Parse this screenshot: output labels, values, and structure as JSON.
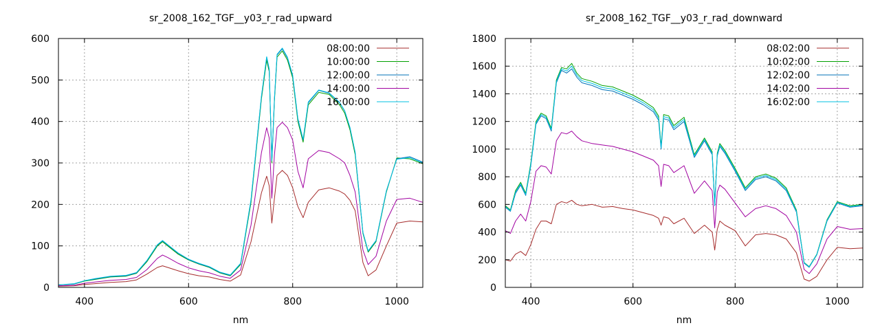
{
  "chart_data": [
    {
      "type": "line",
      "title": "sr_2008_162_TGF__y03_r_rad_upward",
      "xlabel": "nm",
      "ylabel": "",
      "xlim": [
        350,
        1050
      ],
      "ylim": [
        0,
        600
      ],
      "xticks": [
        400,
        600,
        800,
        1000
      ],
      "yticks": [
        0,
        100,
        200,
        300,
        400,
        500,
        600
      ],
      "grid": true,
      "legend": "top-right",
      "x": [
        350,
        380,
        400,
        420,
        450,
        480,
        500,
        520,
        540,
        550,
        560,
        580,
        600,
        620,
        640,
        660,
        680,
        700,
        720,
        740,
        750,
        755,
        760,
        765,
        770,
        780,
        790,
        800,
        810,
        820,
        830,
        850,
        870,
        890,
        900,
        910,
        920,
        935,
        945,
        960,
        980,
        1000,
        1025,
        1050
      ],
      "series": [
        {
          "name": "08:00:00",
          "color": "#a52a2a",
          "values": [
            3,
            4,
            7,
            9,
            12,
            14,
            18,
            32,
            48,
            52,
            48,
            40,
            33,
            28,
            25,
            19,
            15,
            30,
            110,
            228,
            268,
            245,
            155,
            215,
            270,
            282,
            270,
            240,
            195,
            168,
            205,
            235,
            240,
            232,
            225,
            210,
            185,
            60,
            28,
            42,
            100,
            155,
            160,
            158
          ]
        },
        {
          "name": "10:00:00",
          "color": "#00a000",
          "values": [
            6,
            8,
            15,
            19,
            25,
            27,
            34,
            62,
            100,
            110,
            100,
            80,
            66,
            56,
            48,
            35,
            28,
            55,
            205,
            455,
            548,
            520,
            300,
            450,
            555,
            570,
            548,
            505,
            400,
            350,
            440,
            470,
            465,
            440,
            420,
            380,
            320,
            130,
            85,
            110,
            230,
            312,
            310,
            298
          ]
        },
        {
          "name": "12:00:00",
          "color": "#0071b7",
          "values": [
            6,
            8,
            16,
            20,
            26,
            28,
            35,
            64,
            102,
            112,
            102,
            82,
            67,
            57,
            49,
            36,
            29,
            57,
            210,
            460,
            555,
            525,
            305,
            455,
            560,
            575,
            553,
            510,
            405,
            355,
            445,
            475,
            468,
            445,
            425,
            385,
            325,
            132,
            87,
            112,
            232,
            310,
            315,
            302
          ]
        },
        {
          "name": "14:00:00",
          "color": "#a000a0",
          "values": [
            4,
            5,
            10,
            13,
            17,
            19,
            24,
            43,
            70,
            78,
            72,
            58,
            47,
            40,
            35,
            27,
            22,
            42,
            150,
            325,
            385,
            360,
            215,
            320,
            385,
            398,
            385,
            355,
            280,
            240,
            310,
            330,
            325,
            310,
            300,
            270,
            230,
            90,
            55,
            75,
            160,
            212,
            215,
            205
          ]
        },
        {
          "name": "16:00:00",
          "color": "#00c0e0",
          "values": [
            6,
            9,
            16,
            21,
            27,
            29,
            36,
            65,
            103,
            113,
            103,
            83,
            68,
            58,
            50,
            37,
            30,
            58,
            212,
            462,
            556,
            527,
            306,
            457,
            562,
            577,
            555,
            512,
            407,
            357,
            447,
            476,
            469,
            446,
            426,
            386,
            326,
            133,
            88,
            113,
            233,
            309,
            313,
            300
          ]
        }
      ]
    },
    {
      "type": "line",
      "title": "sr_2008_162_TGF__y03_r_rad_downward",
      "xlabel": "nm",
      "ylabel": "",
      "xlim": [
        350,
        1050
      ],
      "ylim": [
        0,
        1800
      ],
      "xticks": [
        400,
        600,
        800,
        1000
      ],
      "yticks": [
        0,
        200,
        400,
        600,
        800,
        1000,
        1200,
        1400,
        1600,
        1800
      ],
      "grid": true,
      "legend": "top-right",
      "x": [
        350,
        360,
        370,
        380,
        390,
        400,
        410,
        420,
        430,
        440,
        450,
        460,
        470,
        480,
        490,
        500,
        520,
        540,
        560,
        580,
        600,
        620,
        640,
        650,
        655,
        660,
        670,
        680,
        700,
        720,
        740,
        755,
        760,
        765,
        770,
        780,
        800,
        820,
        840,
        860,
        880,
        900,
        920,
        935,
        945,
        960,
        980,
        1000,
        1025,
        1050
      ],
      "series": [
        {
          "name": "08:02:00",
          "color": "#a52a2a",
          "values": [
            200,
            190,
            240,
            260,
            230,
            310,
            420,
            480,
            480,
            460,
            600,
            620,
            610,
            630,
            600,
            590,
            600,
            580,
            585,
            570,
            560,
            540,
            520,
            500,
            450,
            510,
            500,
            460,
            500,
            390,
            450,
            400,
            270,
            420,
            480,
            450,
            410,
            300,
            380,
            390,
            380,
            350,
            250,
            60,
            45,
            80,
            200,
            290,
            280,
            285
          ]
        },
        {
          "name": "10:02:00",
          "color": "#00a000",
          "values": [
            590,
            560,
            700,
            760,
            680,
            900,
            1200,
            1260,
            1240,
            1150,
            1500,
            1590,
            1580,
            1620,
            1550,
            1510,
            1490,
            1460,
            1450,
            1420,
            1390,
            1350,
            1300,
            1240,
            1020,
            1250,
            1240,
            1170,
            1230,
            960,
            1080,
            980,
            600,
            970,
            1040,
            990,
            860,
            720,
            800,
            820,
            790,
            720,
            560,
            180,
            150,
            240,
            490,
            620,
            590,
            600
          ]
        },
        {
          "name": "12:02:00",
          "color": "#0071b7",
          "values": [
            580,
            550,
            680,
            740,
            665,
            880,
            1180,
            1240,
            1220,
            1130,
            1480,
            1570,
            1550,
            1580,
            1520,
            1480,
            1460,
            1430,
            1420,
            1390,
            1360,
            1320,
            1270,
            1210,
            1000,
            1220,
            1210,
            1140,
            1200,
            940,
            1060,
            960,
            590,
            950,
            1020,
            970,
            840,
            700,
            780,
            800,
            770,
            700,
            545,
            175,
            145,
            235,
            480,
            610,
            580,
            590
          ]
        },
        {
          "name": "14:02:00",
          "color": "#a000a0",
          "values": [
            410,
            390,
            480,
            530,
            480,
            620,
            840,
            880,
            870,
            820,
            1060,
            1120,
            1110,
            1130,
            1090,
            1060,
            1040,
            1030,
            1020,
            1000,
            980,
            950,
            920,
            880,
            730,
            890,
            880,
            830,
            880,
            680,
            770,
            700,
            430,
            690,
            740,
            710,
            610,
            510,
            570,
            590,
            570,
            520,
            400,
            130,
            100,
            170,
            350,
            440,
            420,
            425
          ]
        },
        {
          "name": "16:02:00",
          "color": "#00c0e0",
          "values": [
            585,
            555,
            690,
            750,
            672,
            890,
            1190,
            1250,
            1230,
            1140,
            1490,
            1580,
            1565,
            1600,
            1535,
            1495,
            1475,
            1445,
            1435,
            1405,
            1375,
            1335,
            1285,
            1225,
            1010,
            1235,
            1225,
            1155,
            1215,
            950,
            1070,
            970,
            595,
            960,
            1030,
            980,
            850,
            710,
            790,
            810,
            780,
            710,
            552,
            178,
            148,
            238,
            485,
            615,
            585,
            595
          ]
        }
      ]
    }
  ]
}
